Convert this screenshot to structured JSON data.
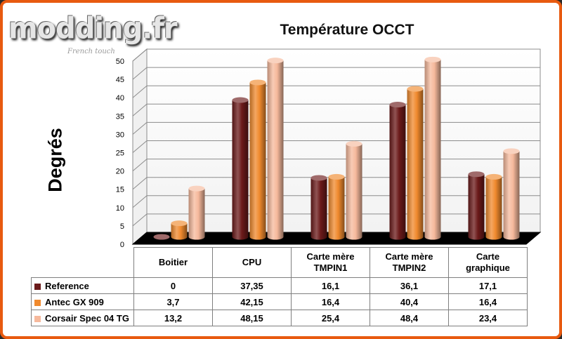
{
  "logo": {
    "text": "modding.fr",
    "subtitle": "French touch"
  },
  "chart_data": {
    "type": "bar",
    "title": "Température OCCT",
    "ylabel": "Degrés",
    "ylim": [
      0,
      50
    ],
    "yticks": [
      0,
      5,
      10,
      15,
      20,
      25,
      30,
      35,
      40,
      45,
      50
    ],
    "grid": true,
    "legend": "table-bottom",
    "categories": [
      [
        "Boitier"
      ],
      [
        "CPU"
      ],
      [
        "Carte mère",
        "TMPIN1"
      ],
      [
        "Carte mère",
        "TMPIN2"
      ],
      [
        "Carte",
        "graphique"
      ]
    ],
    "series": [
      {
        "name": "Reference",
        "color": "#6b1a1a",
        "values": [
          0,
          37.35,
          16.1,
          36.1,
          17.1
        ],
        "labels": [
          "0",
          "37,35",
          "16,1",
          "36,1",
          "17,1"
        ]
      },
      {
        "name": "Antec GX 909",
        "color": "#f08a2e",
        "values": [
          3.7,
          42.15,
          16.4,
          40.4,
          16.4
        ],
        "labels": [
          "3,7",
          "42,15",
          "16,4",
          "40,4",
          "16,4"
        ]
      },
      {
        "name": "Corsair Spec 04 TG",
        "color": "#f6b99c",
        "values": [
          13.2,
          48.15,
          25.4,
          48.4,
          23.4
        ],
        "labels": [
          "13,2",
          "48,15",
          "25,4",
          "48,4",
          "23,4"
        ]
      }
    ]
  }
}
